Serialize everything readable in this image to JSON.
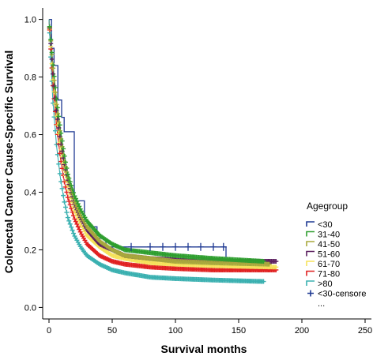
{
  "chart_data": {
    "type": "line",
    "title": "",
    "xlabel": "Survival months",
    "ylabel": "Colorectal Cancer Cause-Specific Survival",
    "xlim": [
      -5,
      255
    ],
    "ylim": [
      -0.04,
      1.04
    ],
    "x_ticks": [
      "0",
      "50",
      "100",
      "150",
      "200",
      "250"
    ],
    "y_ticks": [
      "0.0",
      "0.2",
      "0.4",
      "0.6",
      "0.8",
      "1.0"
    ],
    "grid": false,
    "legend": {
      "title": "Agegroup",
      "placement": "right",
      "entries": [
        "<30",
        "31-40",
        "41-50",
        "51-60",
        "61-70",
        "71-80",
        ">80",
        "<30-censore",
        "..."
      ]
    },
    "series": [
      {
        "name": "<30",
        "color": "#1f3a93",
        "x": [
          0,
          2,
          2,
          4,
          4,
          7,
          7,
          10,
          10,
          12,
          12,
          20,
          20,
          28,
          28,
          38,
          38,
          45,
          45,
          60,
          60,
          140,
          140,
          170
        ],
        "y": [
          1.0,
          1.0,
          0.9,
          0.9,
          0.84,
          0.84,
          0.72,
          0.72,
          0.66,
          0.66,
          0.61,
          0.61,
          0.37,
          0.37,
          0.28,
          0.28,
          0.24,
          0.24,
          0.21,
          0.21,
          0.21,
          0.21,
          0.16,
          0.16
        ],
        "censor_x": [
          65,
          80,
          90,
          100,
          110,
          120,
          130,
          138
        ]
      },
      {
        "name": "31-40",
        "color": "#2e9e2e",
        "x": [
          0,
          3,
          6,
          9,
          12,
          15,
          20,
          25,
          30,
          40,
          50,
          60,
          80,
          100,
          130,
          170
        ],
        "y": [
          1.0,
          0.85,
          0.72,
          0.62,
          0.53,
          0.46,
          0.39,
          0.34,
          0.3,
          0.25,
          0.22,
          0.2,
          0.19,
          0.18,
          0.17,
          0.16
        ]
      },
      {
        "name": "41-50",
        "color": "#a8a83c",
        "x": [
          0,
          3,
          6,
          9,
          12,
          15,
          20,
          25,
          30,
          40,
          50,
          60,
          80,
          100,
          130,
          175
        ],
        "y": [
          1.0,
          0.84,
          0.7,
          0.6,
          0.51,
          0.45,
          0.37,
          0.32,
          0.28,
          0.23,
          0.2,
          0.18,
          0.17,
          0.16,
          0.155,
          0.15
        ]
      },
      {
        "name": "51-60",
        "color": "#5a1e5e",
        "x": [
          0,
          3,
          6,
          9,
          12,
          15,
          20,
          25,
          30,
          40,
          50,
          60,
          80,
          100,
          130,
          180
        ],
        "y": [
          1.0,
          0.82,
          0.68,
          0.58,
          0.5,
          0.44,
          0.36,
          0.31,
          0.27,
          0.22,
          0.2,
          0.18,
          0.17,
          0.165,
          0.16,
          0.16
        ]
      },
      {
        "name": "61-70",
        "color": "#f5e25a",
        "x": [
          0,
          3,
          6,
          9,
          12,
          15,
          20,
          25,
          30,
          40,
          50,
          60,
          80,
          100,
          130,
          180
        ],
        "y": [
          1.0,
          0.8,
          0.66,
          0.56,
          0.48,
          0.42,
          0.34,
          0.29,
          0.25,
          0.21,
          0.18,
          0.17,
          0.155,
          0.15,
          0.145,
          0.14
        ]
      },
      {
        "name": "71-80",
        "color": "#e02020",
        "x": [
          0,
          3,
          6,
          9,
          12,
          15,
          20,
          25,
          30,
          40,
          50,
          60,
          80,
          100,
          130,
          180
        ],
        "y": [
          1.0,
          0.78,
          0.63,
          0.52,
          0.44,
          0.38,
          0.31,
          0.26,
          0.22,
          0.18,
          0.16,
          0.15,
          0.14,
          0.135,
          0.13,
          0.13
        ]
      },
      {
        "name": ">80",
        "color": "#3ab0b0",
        "x": [
          0,
          3,
          6,
          9,
          12,
          15,
          20,
          25,
          30,
          40,
          50,
          60,
          80,
          100,
          130,
          170
        ],
        "y": [
          1.0,
          0.72,
          0.56,
          0.45,
          0.37,
          0.31,
          0.25,
          0.21,
          0.18,
          0.15,
          0.13,
          0.12,
          0.105,
          0.1,
          0.095,
          0.09
        ]
      }
    ]
  }
}
